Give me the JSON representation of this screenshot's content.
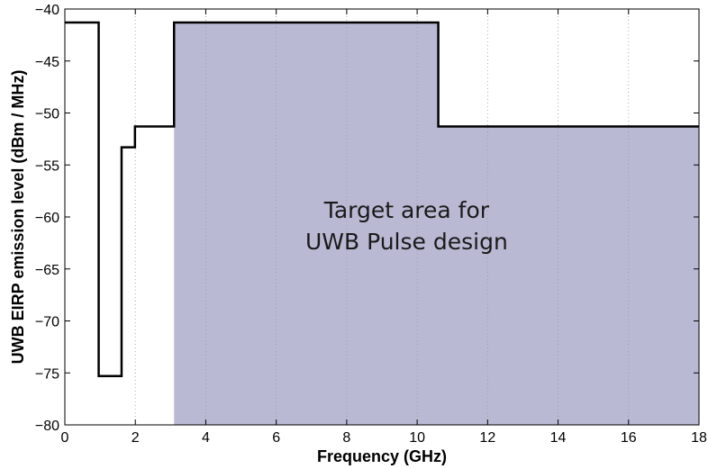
{
  "chart_data": {
    "type": "line",
    "xlabel": "Frequency (GHz)",
    "ylabel": "UWB EIRP emission level (dBm / MHz)",
    "xlim": [
      0,
      18
    ],
    "ylim": [
      -80,
      -40
    ],
    "xticks": [
      0,
      2,
      4,
      6,
      8,
      10,
      12,
      14,
      16,
      18
    ],
    "yticks": [
      -40,
      -45,
      -50,
      -55,
      -60,
      -65,
      -70,
      -75,
      -80
    ],
    "grid": "vertical-dotted",
    "series": [
      {
        "x": [
          0,
          0.96,
          0.96,
          1.61,
          1.61,
          1.99,
          1.99,
          3.1,
          3.1,
          10.6,
          10.6,
          18
        ],
        "y": [
          -41.3,
          -41.3,
          -75.3,
          -75.3,
          -53.3,
          -53.3,
          -51.3,
          -51.3,
          -41.3,
          -41.3,
          -51.3,
          -51.3
        ],
        "color": "#000000"
      }
    ],
    "target_region": {
      "x": [
        3.1,
        10.6,
        10.6,
        18,
        18,
        3.1
      ],
      "y": [
        -41.3,
        -41.3,
        -51.3,
        -51.3,
        -80,
        -80
      ],
      "color": "#b9b9d4"
    },
    "annotations": [
      {
        "text": "Target area for",
        "x": 9.7,
        "y": -60.1
      },
      {
        "text": "UWB Pulse design",
        "x": 9.7,
        "y": -63.1
      }
    ]
  }
}
